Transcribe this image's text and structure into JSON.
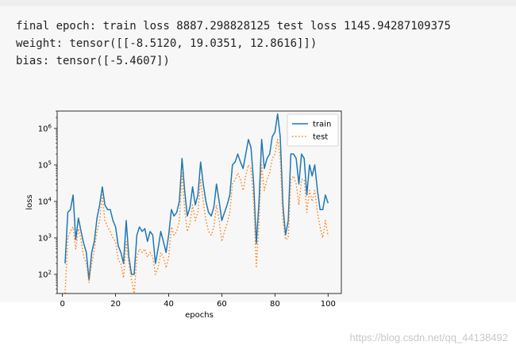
{
  "output_lines": [
    "final epoch: train loss 8887.298828125 test loss 1145.94287109375",
    "weight: tensor([[-8.5120, 19.0351, 12.8616]])",
    "bias: tensor([-5.4607])"
  ],
  "watermark": "https://blog.csdn.net/qq_44138492",
  "chart_data": {
    "type": "line",
    "title": "",
    "xlabel": "epochs",
    "ylabel": "loss",
    "yscale": "log",
    "xlim": [
      -2,
      105
    ],
    "ylim": [
      30,
      3000000
    ],
    "xticks": [
      0,
      20,
      40,
      60,
      80,
      100
    ],
    "yticks": [
      {
        "value": 100,
        "base": "10",
        "exp": "2"
      },
      {
        "value": 1000,
        "base": "10",
        "exp": "3"
      },
      {
        "value": 10000,
        "base": "10",
        "exp": "4"
      },
      {
        "value": 100000,
        "base": "10",
        "exp": "5"
      },
      {
        "value": 1000000,
        "base": "10",
        "exp": "6"
      }
    ],
    "grid": false,
    "legend_position": "upper right",
    "series": [
      {
        "name": "train",
        "color": "#1f77b4",
        "style": "solid",
        "x": [
          1,
          2,
          3,
          4,
          5,
          6,
          7,
          8,
          9,
          10,
          11,
          12,
          13,
          14,
          15,
          16,
          17,
          18,
          19,
          20,
          21,
          22,
          23,
          24,
          25,
          26,
          27,
          28,
          29,
          30,
          31,
          32,
          33,
          34,
          35,
          36,
          37,
          38,
          39,
          40,
          41,
          42,
          43,
          44,
          45,
          46,
          47,
          48,
          49,
          50,
          51,
          52,
          53,
          54,
          55,
          56,
          57,
          58,
          59,
          60,
          61,
          62,
          63,
          64,
          65,
          66,
          67,
          68,
          69,
          70,
          71,
          72,
          73,
          74,
          75,
          76,
          77,
          78,
          79,
          80,
          81,
          82,
          83,
          84,
          85,
          86,
          87,
          88,
          89,
          90,
          91,
          92,
          93,
          94,
          95,
          96,
          97,
          98,
          99,
          100
        ],
        "y": [
          200,
          5000,
          6000,
          15000,
          900,
          3500,
          1500,
          700,
          400,
          70,
          400,
          800,
          3500,
          8000,
          25000,
          8000,
          6000,
          6000,
          3000,
          2000,
          600,
          400,
          200,
          3000,
          300,
          100,
          100,
          1200,
          2000,
          1500,
          1800,
          800,
          1500,
          1200,
          200,
          500,
          1500,
          800,
          400,
          1200,
          6000,
          4000,
          5000,
          10000,
          150000,
          20000,
          4000,
          7000,
          25000,
          8000,
          15000,
          120000,
          30000,
          10000,
          5000,
          4000,
          7000,
          30000,
          10000,
          3000,
          5000,
          8000,
          15000,
          100000,
          120000,
          200000,
          120000,
          80000,
          200000,
          500000,
          300000,
          30000,
          700,
          10000,
          500000,
          80000,
          150000,
          200000,
          600000,
          800000,
          2500000,
          600000,
          8000,
          1200,
          3000,
          200000,
          200000,
          150000,
          30000,
          200000,
          150000,
          15000,
          100000,
          50000,
          100000,
          20000,
          6000,
          6000,
          15000,
          9000
        ]
      },
      {
        "name": "test",
        "color": "#ff7f0e",
        "style": "dotted",
        "x": [
          1,
          2,
          3,
          4,
          5,
          6,
          7,
          8,
          9,
          10,
          11,
          12,
          13,
          14,
          15,
          16,
          17,
          18,
          19,
          20,
          21,
          22,
          23,
          24,
          25,
          26,
          27,
          28,
          29,
          30,
          31,
          32,
          33,
          34,
          35,
          36,
          37,
          38,
          39,
          40,
          41,
          42,
          43,
          44,
          45,
          46,
          47,
          48,
          49,
          50,
          51,
          52,
          53,
          54,
          55,
          56,
          57,
          58,
          59,
          60,
          61,
          62,
          63,
          64,
          65,
          66,
          67,
          68,
          69,
          70,
          71,
          72,
          73,
          74,
          75,
          76,
          77,
          78,
          79,
          80,
          81,
          82,
          83,
          84,
          85,
          86,
          87,
          88,
          89,
          90,
          91,
          92,
          93,
          94,
          95,
          96,
          97,
          98,
          99,
          100
        ],
        "y": [
          30,
          1000,
          1500,
          2000,
          500,
          1800,
          900,
          300,
          200,
          60,
          200,
          500,
          1500,
          3000,
          15000,
          3000,
          2000,
          1500,
          1000,
          800,
          250,
          200,
          80,
          800,
          200,
          70,
          30,
          300,
          500,
          400,
          500,
          300,
          400,
          300,
          100,
          150,
          400,
          300,
          150,
          300,
          2000,
          1200,
          1500,
          3000,
          60000,
          6000,
          1500,
          2500,
          8000,
          3000,
          5000,
          40000,
          10000,
          3000,
          1500,
          1200,
          2000,
          8000,
          3000,
          800,
          1500,
          2500,
          5000,
          30000,
          40000,
          60000,
          40000,
          20000,
          50000,
          100000,
          80000,
          10000,
          150,
          3000,
          100000,
          20000,
          40000,
          60000,
          150000,
          200000,
          500000,
          150000,
          3000,
          900,
          1000,
          40000,
          50000,
          30000,
          8000,
          40000,
          40000,
          5000,
          20000,
          10000,
          20000,
          5000,
          2000,
          1000,
          3000,
          1100
        ]
      }
    ]
  }
}
